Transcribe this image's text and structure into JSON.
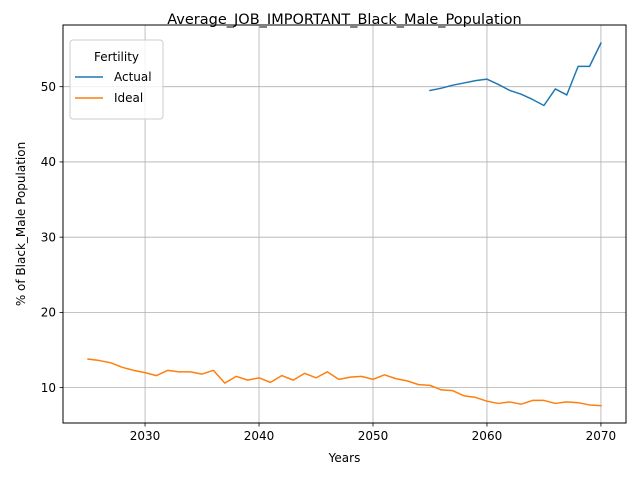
{
  "chart_data": {
    "type": "line",
    "title": "Average_JOB_IMPORTANT_Black_Male_Population",
    "xlabel": "Years",
    "ylabel": "% of Black_Male Population",
    "xlim": [
      2022.8,
      2072.2
    ],
    "ylim": [
      5.3,
      58.2
    ],
    "xticks": [
      2030,
      2040,
      2050,
      2060,
      2070
    ],
    "yticks": [
      10,
      20,
      30,
      40,
      50
    ],
    "grid": true,
    "legend": {
      "title": "Fertility",
      "placement": "top-left"
    },
    "series": [
      {
        "name": "Actual",
        "color": "#1f77b4",
        "x": [
          2055,
          2056,
          2057,
          2058,
          2059,
          2060,
          2061,
          2062,
          2063,
          2064,
          2065,
          2066,
          2067,
          2068,
          2069,
          2070
        ],
        "y": [
          49.5,
          49.8,
          50.2,
          50.5,
          50.8,
          51.0,
          50.3,
          49.5,
          49.0,
          48.3,
          47.5,
          49.7,
          48.9,
          52.7,
          52.7,
          55.8
        ]
      },
      {
        "name": "Ideal",
        "color": "#ff7f0e",
        "x": [
          2025,
          2026,
          2027,
          2028,
          2029,
          2030,
          2031,
          2032,
          2033,
          2034,
          2035,
          2036,
          2037,
          2038,
          2039,
          2040,
          2041,
          2042,
          2043,
          2044,
          2045,
          2046,
          2047,
          2048,
          2049,
          2050,
          2051,
          2052,
          2053,
          2054,
          2055,
          2056,
          2057,
          2058,
          2059,
          2060,
          2061,
          2062,
          2063,
          2064,
          2065,
          2066,
          2067,
          2068,
          2069,
          2070
        ],
        "y": [
          13.8,
          13.6,
          13.3,
          12.7,
          12.3,
          12.0,
          11.6,
          12.3,
          12.1,
          12.1,
          11.8,
          12.3,
          10.6,
          11.5,
          11.0,
          11.3,
          10.7,
          11.6,
          11.0,
          11.9,
          11.3,
          12.1,
          11.1,
          11.4,
          11.5,
          11.1,
          11.7,
          11.2,
          10.9,
          10.4,
          10.3,
          9.7,
          9.6,
          8.9,
          8.7,
          8.2,
          7.9,
          8.1,
          7.8,
          8.3,
          8.3,
          7.9,
          8.1,
          8.0,
          7.7,
          7.6
        ]
      }
    ]
  }
}
